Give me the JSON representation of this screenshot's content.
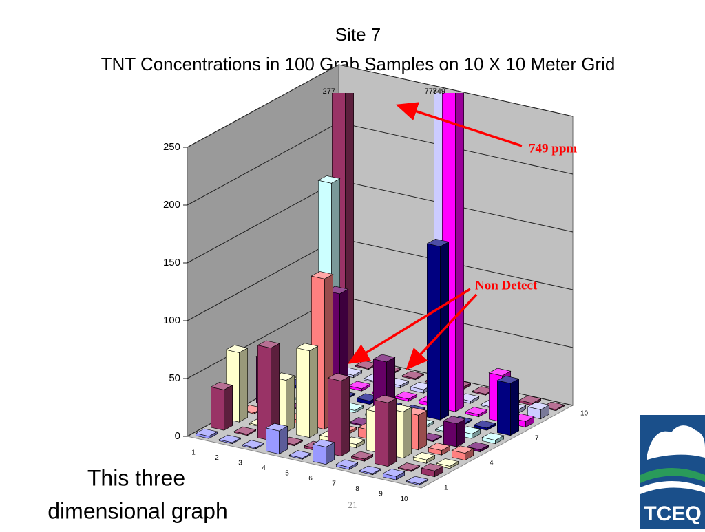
{
  "chart_data": {
    "type": "bar3d",
    "title": "Site 7",
    "subtitle": "TNT Concentrations in 100 Grab Samples on 10 X 10 Meter Grid",
    "categories": [
      "1",
      "2",
      "3",
      "4",
      "5",
      "6",
      "7",
      "8",
      "9",
      "10"
    ],
    "depth_categories": [
      "1",
      null,
      null,
      "4",
      null,
      null,
      "7",
      null,
      null,
      "10"
    ],
    "series": [
      {
        "color": "#9999ff",
        "values": [
          2,
          1,
          1,
          20,
          1,
          15,
          2,
          1,
          3,
          1
        ]
      },
      {
        "color": "#993366",
        "values": [
          35,
          1,
          80,
          1,
          2,
          65,
          2,
          55,
          1,
          5
        ]
      },
      {
        "color": "#ffffcc",
        "values": [
          60,
          1,
          45,
          75,
          4,
          3,
          35,
          40,
          3,
          2
        ]
      },
      {
        "color": "#ff8080",
        "values": [
          1,
          2,
          3,
          130,
          2,
          8,
          20,
          30,
          4,
          6
        ]
      },
      {
        "color": "#660066",
        "values": [
          40,
          1,
          2,
          110,
          1,
          60,
          3,
          1,
          20,
          2
        ]
      },
      {
        "color": "#ccffff",
        "values": [
          1,
          1,
          194,
          2,
          1,
          3,
          2,
          1,
          4,
          3
        ]
      },
      {
        "color": "#000080",
        "values": [
          2,
          1,
          1,
          3,
          1,
          2,
          150,
          1,
          2,
          45
        ]
      },
      {
        "color": "#ff00ff",
        "values": [
          1,
          1,
          2,
          1,
          2,
          3,
          749,
          2,
          40,
          5
        ]
      },
      {
        "color": "#ccccff",
        "values": [
          1,
          2,
          1,
          2,
          3,
          778,
          2,
          1,
          3,
          8
        ]
      },
      {
        "color": "#993366",
        "values": [
          277,
          1,
          1,
          1,
          1,
          2,
          1,
          1,
          2,
          1
        ]
      }
    ],
    "ylim": [
      0,
      250
    ],
    "yticks": [
      0,
      50,
      100,
      150,
      200,
      250
    ],
    "grid": true,
    "annotations": [
      "749 ppm",
      "Non Detect"
    ]
  },
  "slide": {
    "caption": [
      "This three",
      "dimensional graph"
    ],
    "page_number": "21",
    "logo": "TCEQ"
  }
}
